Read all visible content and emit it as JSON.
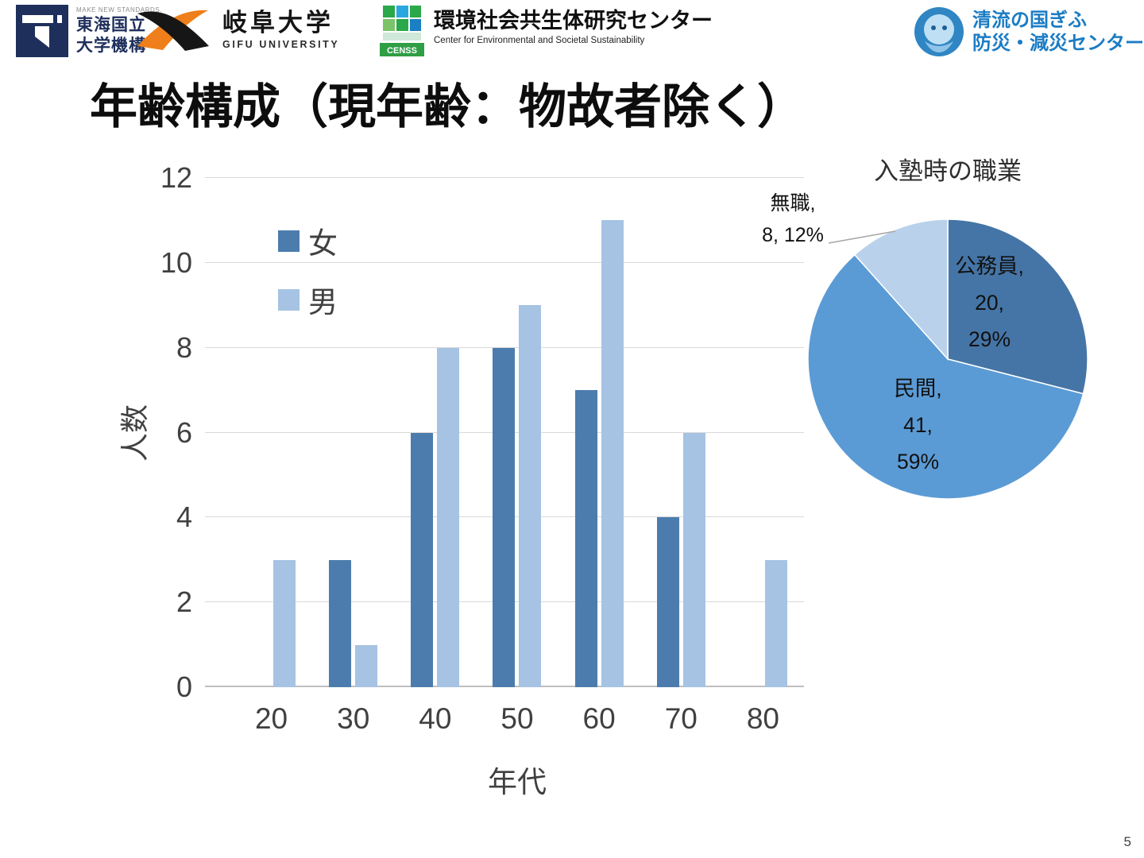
{
  "header": {
    "tokai": {
      "tagline": "MAKE NEW STANDARDS.",
      "name_line1": "東海国立",
      "name_line2": "大学機構"
    },
    "gifu": {
      "name": "岐阜大学",
      "subtitle": "GIFU UNIVERSITY"
    },
    "censs": {
      "logo_label": "CENSS",
      "name": "環境社会共生体研究センター",
      "subtitle": "Center for Environmental and Societal Sustainability"
    },
    "bosai": {
      "line1": "清流の国ぎふ",
      "line2": "防災・減災センター"
    }
  },
  "title": "年齢構成（現年齢：物故者除く）",
  "page_number": "5",
  "chart_data": [
    {
      "type": "bar",
      "title": "",
      "xlabel": "年代",
      "ylabel": "人数",
      "categories": [
        "20",
        "30",
        "40",
        "50",
        "60",
        "70",
        "80"
      ],
      "series": [
        {
          "name": "女",
          "color": "#4c7cad",
          "values": [
            0,
            3,
            6,
            8,
            7,
            4,
            0
          ]
        },
        {
          "name": "男",
          "color": "#a6c3e3",
          "values": [
            3,
            1,
            8,
            9,
            11,
            6,
            3
          ]
        }
      ],
      "ylim": [
        0,
        12
      ],
      "ytick_step": 2,
      "grid": true,
      "legend_position": "top-left-inside"
    },
    {
      "type": "pie",
      "title": "入塾時の職業",
      "slices": [
        {
          "label": "公務員",
          "value": 20,
          "pct": "29%",
          "color": "#4575a6",
          "label_position": "inside"
        },
        {
          "label": "民間",
          "value": 41,
          "pct": "59%",
          "color": "#5b9bd5",
          "label_position": "inside"
        },
        {
          "label": "無職",
          "value": 8,
          "pct": "12%",
          "color": "#bad1eb",
          "label_position": "outside"
        }
      ],
      "start_angle": "top",
      "direction": "clockwise",
      "total": 69
    }
  ]
}
